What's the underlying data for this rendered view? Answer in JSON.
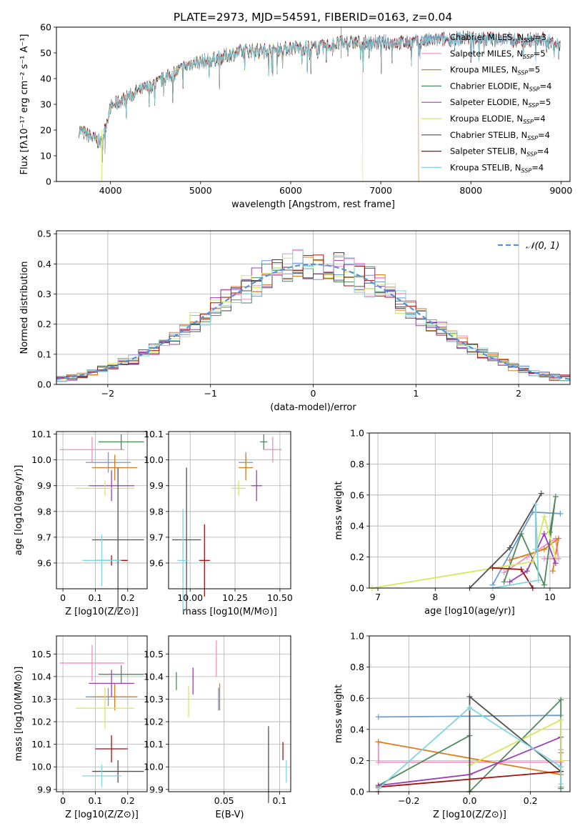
{
  "figure_title": "PLATE=2973, MJD=54591, FIBERID=0163, z=0.04",
  "colors": [
    "#6b9bd1",
    "#f28cc2",
    "#e07b1a",
    "#4e8a5a",
    "#9b3fb5",
    "#d7e65a",
    "#505050",
    "#a30f0f",
    "#7fd6e0"
  ],
  "chart_data": [
    {
      "id": "spectrum",
      "type": "line",
      "title": "PLATE=2973, MJD=54591, FIBERID=0163, z=0.04",
      "xlabel": "wavelength [Angstrom, rest frame]",
      "ylabel": "Flux [fλ10⁻¹⁷ erg cm⁻² s⁻¹ A⁻¹]",
      "xlim": [
        3400,
        9100
      ],
      "ylim": [
        0,
        60
      ],
      "xticks": [
        4000,
        5000,
        6000,
        7000,
        8000,
        9000
      ],
      "yticks": [
        0,
        10,
        20,
        30,
        40,
        50,
        60
      ],
      "legend_position": "upper-right",
      "continuum": {
        "x": [
          3650,
          3800,
          3900,
          4000,
          4100,
          4300,
          4500,
          4700,
          4900,
          5100,
          5300,
          5500,
          5800,
          6000,
          6300,
          6600,
          6800,
          7000,
          7300,
          7600,
          8000,
          8400,
          8800,
          8990
        ],
        "y": [
          20,
          17,
          15,
          29,
          31,
          35,
          38,
          42,
          46,
          47,
          49,
          51,
          51,
          52,
          52,
          54,
          54,
          54,
          54,
          55,
          56,
          55,
          55,
          53
        ]
      },
      "series": [
        {
          "name": "Chabrier MILES, N_SSP=3",
          "label_main": "Chabrier MILES, N",
          "label_sub": "SSP",
          "label_tail": "=3",
          "color": "#6b9bd1"
        },
        {
          "name": "Salpeter MILES, N_SSP=5",
          "label_main": "Salpeter MILES, N",
          "label_sub": "SSP",
          "label_tail": "=5",
          "color": "#f28cc2"
        },
        {
          "name": "Kroupa MILES, N_SSP=5",
          "label_main": "Kroupa MILES, N",
          "label_sub": "SSP",
          "label_tail": "=5",
          "color": "#e07b1a",
          "drop_at": 7420
        },
        {
          "name": "Chabrier ELODIE, N_SSP=4",
          "label_main": "Chabrier ELODIE, N",
          "label_sub": "SSP",
          "label_tail": "=4",
          "color": "#4e8a5a"
        },
        {
          "name": "Salpeter ELODIE, N_SSP=5",
          "label_main": "Salpeter ELODIE, N",
          "label_sub": "SSP",
          "label_tail": "=5",
          "color": "#9b3fb5"
        },
        {
          "name": "Kroupa ELODIE, N_SSP=4",
          "label_main": "Kroupa ELODIE, N",
          "label_sub": "SSP",
          "label_tail": "=4",
          "color": "#d7e65a",
          "drop_at": 6800
        },
        {
          "name": "Chabrier STELIB, N_SSP=4",
          "label_main": "Chabrier STELIB, N",
          "label_sub": "SSP",
          "label_tail": "=4",
          "color": "#505050"
        },
        {
          "name": "Salpeter STELIB, N_SSP=4",
          "label_main": "Salpeter STELIB, N",
          "label_sub": "SSP",
          "label_tail": "=4",
          "color": "#a30f0f"
        },
        {
          "name": "Kroupa STELIB, N_SSP=4",
          "label_main": "Kroupa STELIB, N",
          "label_sub": "SSP",
          "label_tail": "=4",
          "color": "#7fd6e0"
        }
      ]
    },
    {
      "id": "residuals",
      "type": "histogram",
      "xlabel": "(data-model)/error",
      "ylabel": "Normed distribution",
      "xlim": [
        -2.5,
        2.5
      ],
      "ylim": [
        0,
        0.51
      ],
      "xticks": [
        -2,
        -1,
        0,
        1,
        2
      ],
      "xtick_labels": [
        "−2",
        "−1",
        "0",
        "1",
        "2"
      ],
      "yticks": [
        0.0,
        0.1,
        0.2,
        0.3,
        0.4,
        0.5
      ],
      "grid": true,
      "bin_width": 0.1,
      "legend": "𝒩(0, 1)",
      "legend_position": "upper-right",
      "normal": {
        "mean": 0,
        "sigma": 1,
        "color": "#5b8fd9"
      }
    },
    {
      "id": "age-vs-z",
      "type": "scatter-errorbar",
      "xlabel": "Z [log10(Z/Z⊙)]",
      "ylabel": "age [log10(age/yr)]",
      "xlim": [
        -0.02,
        0.26
      ],
      "ylim": [
        9.5,
        10.11
      ],
      "xticks": [
        0.0,
        0.1,
        0.2
      ],
      "yticks": [
        9.6,
        9.7,
        9.8,
        9.9,
        10.0,
        10.1
      ],
      "grid": true,
      "points": [
        {
          "x": 0.14,
          "xerr": 0.07,
          "y": 9.99,
          "yerr": 0.04,
          "color": "#6b9bd1"
        },
        {
          "x": 0.09,
          "xerr": 0.1,
          "y": 10.04,
          "yerr": 0.05,
          "color": "#f28cc2"
        },
        {
          "x": 0.16,
          "xerr": 0.07,
          "y": 9.97,
          "yerr": 0.05,
          "color": "#e07b1a"
        },
        {
          "x": 0.18,
          "xerr": 0.07,
          "y": 10.07,
          "yerr": 0.03,
          "color": "#4e8a5a"
        },
        {
          "x": 0.15,
          "xerr": 0.07,
          "y": 9.9,
          "yerr": 0.06,
          "color": "#9b3fb5"
        },
        {
          "x": 0.13,
          "xerr": 0.09,
          "y": 9.89,
          "yerr": 0.03,
          "color": "#d7e65a"
        },
        {
          "x": 0.17,
          "xerr": 0.08,
          "y": 9.69,
          "yerr": 0.28,
          "color": "#505050"
        },
        {
          "x": 0.15,
          "xerr": 0.05,
          "y": 9.61,
          "yerr": 0.02,
          "color": "#a30f0f"
        },
        {
          "x": 0.12,
          "xerr": 0.06,
          "y": 9.61,
          "yerr": 0.1,
          "color": "#7fd6e0"
        }
      ]
    },
    {
      "id": "age-vs-mass",
      "type": "scatter-errorbar",
      "xlabel": "mass [log10(M/M⊙)]",
      "ylabel": "",
      "xlim": [
        9.88,
        10.56
      ],
      "ylim": [
        9.5,
        10.11
      ],
      "xticks": [
        10.0,
        10.25,
        10.5
      ],
      "xtick_labels": [
        "10.00",
        "10.25",
        "10.50"
      ],
      "yticks": [
        9.6,
        9.7,
        9.8,
        9.9,
        10.0,
        10.1
      ],
      "grid": true,
      "points": [
        {
          "x": 10.31,
          "xerr": 0.04,
          "y": 9.99,
          "yerr": 0.04,
          "color": "#6b9bd1"
        },
        {
          "x": 10.46,
          "xerr": 0.05,
          "y": 10.04,
          "yerr": 0.05,
          "color": "#f28cc2"
        },
        {
          "x": 10.31,
          "xerr": 0.04,
          "y": 9.97,
          "yerr": 0.05,
          "color": "#e07b1a"
        },
        {
          "x": 10.41,
          "xerr": 0.02,
          "y": 10.07,
          "yerr": 0.03,
          "color": "#4e8a5a"
        },
        {
          "x": 10.37,
          "xerr": 0.03,
          "y": 9.9,
          "yerr": 0.06,
          "color": "#9b3fb5"
        },
        {
          "x": 10.27,
          "xerr": 0.04,
          "y": 9.89,
          "yerr": 0.03,
          "color": "#d7e65a"
        },
        {
          "x": 9.98,
          "xerr": 0.08,
          "y": 9.69,
          "yerr": 0.28,
          "color": "#505050"
        },
        {
          "x": 10.08,
          "xerr": 0.03,
          "y": 9.61,
          "yerr": 0.14,
          "color": "#a30f0f"
        },
        {
          "x": 9.96,
          "xerr": 0.03,
          "y": 9.61,
          "yerr": 0.2,
          "color": "#7fd6e0"
        }
      ]
    },
    {
      "id": "mass-weight-vs-age",
      "type": "line",
      "xlabel": "age [log10(age/yr)]",
      "ylabel": "mass weight",
      "xlim": [
        6.85,
        10.35
      ],
      "ylim": [
        0,
        1.0
      ],
      "xticks": [
        7,
        8,
        9,
        10
      ],
      "yticks": [
        0.0,
        0.2,
        0.4,
        0.6,
        0.8,
        1.0
      ],
      "grid": true,
      "series": [
        {
          "color": "#6b9bd1",
          "x": [
            9.0,
            9.7,
            10.18
          ],
          "y": [
            0.02,
            0.49,
            0.48
          ]
        },
        {
          "color": "#f28cc2",
          "x": [
            9.2,
            9.6,
            10.1,
            10.15,
            9.9
          ],
          "y": [
            0.1,
            0.2,
            0.32,
            0.19,
            0.19
          ]
        },
        {
          "color": "#e07b1a",
          "x": [
            9.3,
            9.9,
            10.15,
            10.05
          ],
          "y": [
            0.18,
            0.25,
            0.32,
            0.11
          ]
        },
        {
          "color": "#4e8a5a",
          "x": [
            9.2,
            9.5,
            9.9,
            10.1,
            10.0
          ],
          "y": [
            0.04,
            0.35,
            0.02,
            0.59,
            0.36
          ]
        },
        {
          "color": "#9b3fb5",
          "x": [
            9.3,
            9.6,
            9.9,
            10.1
          ],
          "y": [
            0.04,
            0.11,
            0.35,
            0.16
          ]
        },
        {
          "color": "#d7e65a",
          "x": [
            6.9,
            9.7,
            9.9,
            10.1
          ],
          "y": [
            0.0,
            0.17,
            0.46,
            0.2
          ]
        },
        {
          "color": "#505050",
          "x": [
            8.6,
            9.3,
            9.85
          ],
          "y": [
            0.0,
            0.26,
            0.61
          ]
        },
        {
          "color": "#a30f0f",
          "x": [
            9.0,
            9.5,
            9.7
          ],
          "y": [
            0.13,
            0.12,
            0.0
          ]
        },
        {
          "color": "#7fd6e0",
          "x": [
            9.0,
            9.8,
            9.75,
            9.75
          ],
          "y": [
            0.0,
            0.05,
            0.54,
            0.25
          ]
        }
      ]
    },
    {
      "id": "mass-vs-z",
      "type": "scatter-errorbar",
      "xlabel": "Z [log10(Z/Z⊙)]",
      "ylabel": "mass [log10(M/M⊙)]",
      "xlim": [
        -0.02,
        0.26
      ],
      "ylim": [
        9.89,
        10.58
      ],
      "xticks": [
        0.0,
        0.1,
        0.2
      ],
      "yticks": [
        9.9,
        10.0,
        10.1,
        10.2,
        10.3,
        10.4,
        10.5
      ],
      "grid": true,
      "points": [
        {
          "x": 0.14,
          "xerr": 0.07,
          "y": 10.31,
          "yerr": 0.04,
          "color": "#6b9bd1"
        },
        {
          "x": 0.09,
          "xerr": 0.1,
          "y": 10.46,
          "yerr": 0.08,
          "color": "#f28cc2"
        },
        {
          "x": 0.16,
          "xerr": 0.07,
          "y": 10.31,
          "yerr": 0.06,
          "color": "#e07b1a"
        },
        {
          "x": 0.18,
          "xerr": 0.07,
          "y": 10.41,
          "yerr": 0.04,
          "color": "#4e8a5a"
        },
        {
          "x": 0.15,
          "xerr": 0.07,
          "y": 10.37,
          "yerr": 0.06,
          "color": "#9b3fb5"
        },
        {
          "x": 0.13,
          "xerr": 0.09,
          "y": 10.26,
          "yerr": 0.09,
          "color": "#d7e65a"
        },
        {
          "x": 0.17,
          "xerr": 0.08,
          "y": 9.98,
          "yerr": 0.05,
          "color": "#505050"
        },
        {
          "x": 0.15,
          "xerr": 0.05,
          "y": 10.08,
          "yerr": 0.06,
          "color": "#a30f0f"
        },
        {
          "x": 0.12,
          "xerr": 0.06,
          "y": 9.96,
          "yerr": 0.05,
          "color": "#7fd6e0"
        }
      ]
    },
    {
      "id": "mass-vs-ebv",
      "type": "scatter-errorbar",
      "xlabel": "E(B-V)",
      "ylabel": "",
      "xlim": [
        0.0,
        0.11
      ],
      "ylim": [
        9.89,
        10.58
      ],
      "xticks": [
        0.05,
        0.1
      ],
      "yticks": [
        9.9,
        10.0,
        10.1,
        10.2,
        10.3,
        10.4,
        10.5
      ],
      "grid": true,
      "points": [
        {
          "x": 0.045,
          "yerr": 0.05,
          "y": 10.3,
          "color": "#6b9bd1"
        },
        {
          "x": 0.043,
          "yerr": 0.08,
          "y": 10.48,
          "color": "#f28cc2"
        },
        {
          "x": 0.046,
          "yerr": 0.06,
          "y": 10.31,
          "color": "#e07b1a"
        },
        {
          "x": 0.007,
          "yerr": 0.04,
          "y": 10.38,
          "color": "#4e8a5a"
        },
        {
          "x": 0.022,
          "yerr": 0.06,
          "y": 10.38,
          "color": "#9b3fb5"
        },
        {
          "x": 0.018,
          "yerr": 0.07,
          "y": 10.29,
          "color": "#d7e65a"
        },
        {
          "x": 0.09,
          "yerr": 0.17,
          "y": 10.01,
          "color": "#505050"
        },
        {
          "x": 0.103,
          "yerr": 0.04,
          "y": 10.07,
          "color": "#a30f0f"
        },
        {
          "x": 0.106,
          "yerr": 0.05,
          "y": 9.98,
          "color": "#7fd6e0"
        }
      ]
    },
    {
      "id": "mass-weight-vs-z",
      "type": "line",
      "xlabel": "Z [log10(Z/Z⊙)]",
      "ylabel": "mass weight",
      "xlim": [
        -0.33,
        0.33
      ],
      "ylim": [
        0,
        1.0
      ],
      "xticks": [
        -0.2,
        0.0,
        0.2
      ],
      "xtick_labels": [
        "−0.2",
        "0.0",
        "0.2"
      ],
      "yticks": [
        0.0,
        0.2,
        0.4,
        0.6,
        0.8,
        1.0
      ],
      "grid": true,
      "series": [
        {
          "color": "#6b9bd1",
          "x": [
            -0.3,
            0.3,
            0.3
          ],
          "y": [
            0.48,
            0.49,
            0.03
          ]
        },
        {
          "color": "#f28cc2",
          "x": [
            -0.3,
            -0.3,
            0.3,
            0.3
          ],
          "y": [
            0.32,
            0.19,
            0.19,
            0.27
          ]
        },
        {
          "color": "#e07b1a",
          "x": [
            -0.3,
            0.3,
            0.3
          ],
          "y": [
            0.32,
            0.11,
            0.25
          ]
        },
        {
          "color": "#4e8a5a",
          "x": [
            -0.3,
            0.0,
            0.0,
            0.3,
            0.3
          ],
          "y": [
            0.04,
            0.36,
            0.0,
            0.59,
            0.02
          ]
        },
        {
          "color": "#9b3fb5",
          "x": [
            -0.3,
            0.0,
            0.3,
            0.3
          ],
          "y": [
            0.04,
            0.11,
            0.35,
            0.16
          ]
        },
        {
          "color": "#d7e65a",
          "x": [
            0.0,
            0.0,
            0.3,
            0.3
          ],
          "y": [
            0.0,
            0.17,
            0.46,
            0.2
          ]
        },
        {
          "color": "#505050",
          "x": [
            0.0,
            0.0,
            0.3
          ],
          "y": [
            0.0,
            0.61,
            0.13
          ]
        },
        {
          "color": "#a30f0f",
          "x": [
            -0.3,
            -0.3,
            0.3
          ],
          "y": [
            0.0,
            0.03,
            0.13
          ]
        },
        {
          "color": "#7fd6e0",
          "x": [
            -0.3,
            0.0,
            0.3,
            0.3
          ],
          "y": [
            0.02,
            0.54,
            0.16,
            0.05
          ]
        }
      ]
    }
  ]
}
